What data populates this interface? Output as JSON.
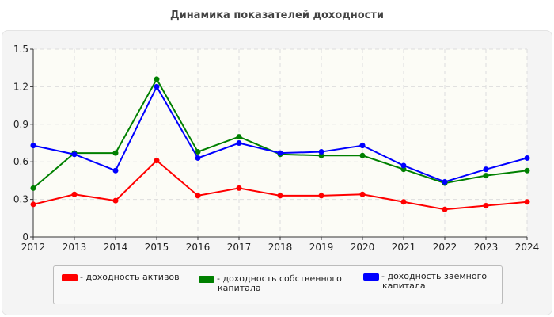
{
  "chart_data": {
    "type": "line",
    "title": "Динамика показателей доходности",
    "xlabel": "",
    "ylabel": "",
    "x": [
      "2012",
      "2013",
      "2014",
      "2015",
      "2016",
      "2017",
      "2018",
      "2019",
      "2020",
      "2021",
      "2022",
      "2023",
      "2024"
    ],
    "ylim": [
      0,
      1.5
    ],
    "yticks": [
      "0",
      "0.3",
      "0.6",
      "0.9",
      "1.2",
      "1.5"
    ],
    "grid": true,
    "legend_placement": "bottom",
    "series": [
      {
        "name": "- доходность активов",
        "color": "#ff0000",
        "values": [
          0.26,
          0.34,
          0.29,
          0.61,
          0.33,
          0.39,
          0.33,
          0.33,
          0.34,
          0.28,
          0.22,
          0.25,
          0.28
        ]
      },
      {
        "name": "- доходность собственного капитала",
        "color": "#008000",
        "values": [
          0.39,
          0.67,
          0.67,
          1.26,
          0.68,
          0.8,
          0.66,
          0.65,
          0.65,
          0.54,
          0.43,
          0.49,
          0.53
        ]
      },
      {
        "name": "- доходность заемного капитала",
        "color": "#0000ff",
        "values": [
          0.73,
          0.66,
          0.53,
          1.2,
          0.63,
          0.75,
          0.67,
          0.68,
          0.73,
          0.57,
          0.44,
          0.54,
          0.63
        ]
      }
    ]
  }
}
